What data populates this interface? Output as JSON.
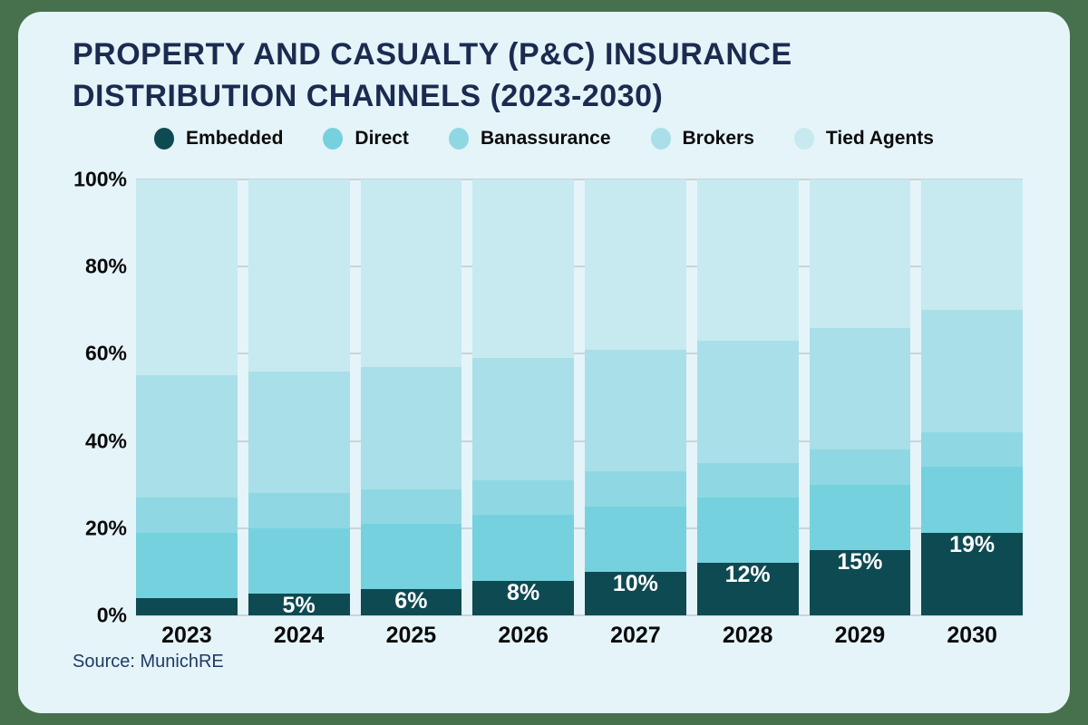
{
  "frame": {
    "background_color": "#47704d",
    "card_color": "#e5f4f9"
  },
  "header": {
    "title_line1": "PROPERTY AND CASUALTY (P&C) INSURANCE",
    "title_line2": "DISTRIBUTION CHANNELS (2023-2030)",
    "title_color": "#1b2b50"
  },
  "source": {
    "label": "Source: MunichRE"
  },
  "chart_data": {
    "type": "bar",
    "stacked": true,
    "title": "PROPERTY AND CASUALTY (P&C) INSURANCE DISTRIBUTION CHANNELS (2023-2030)",
    "categories": [
      "2023",
      "2024",
      "2025",
      "2026",
      "2027",
      "2028",
      "2029",
      "2030"
    ],
    "series": [
      {
        "name": "Embedded",
        "color": "#0e4a52",
        "values": [
          4,
          5,
          6,
          8,
          10,
          12,
          15,
          19
        ]
      },
      {
        "name": "Direct",
        "color": "#76d1de",
        "values": [
          15,
          15,
          15,
          15,
          15,
          15,
          15,
          15
        ]
      },
      {
        "name": "Banassurance",
        "color": "#8fd8e3",
        "values": [
          8,
          8,
          8,
          8,
          8,
          8,
          8,
          8
        ]
      },
      {
        "name": "Brokers",
        "color": "#a9dfe8",
        "values": [
          28,
          28,
          28,
          28,
          28,
          28,
          28,
          28
        ]
      },
      {
        "name": "Tied Agents",
        "color": "#c6eaef",
        "values": [
          45,
          44,
          43,
          41,
          39,
          37,
          34,
          30
        ]
      }
    ],
    "bar_labels": [
      "",
      "5%",
      "6%",
      "8%",
      "10%",
      "12%",
      "15%",
      "19%"
    ],
    "y_ticks": [
      {
        "label": "0%",
        "value": 0
      },
      {
        "label": "20%",
        "value": 20
      },
      {
        "label": "40%",
        "value": 40
      },
      {
        "label": "60%",
        "value": 60
      },
      {
        "label": "80%",
        "value": 80
      },
      {
        "label": "100%",
        "value": 100
      }
    ],
    "ylim": [
      0,
      100
    ],
    "grid": true,
    "gridline_color": "#c9d4d9",
    "legend_position": "top",
    "value_label_color": "#ffffff"
  }
}
